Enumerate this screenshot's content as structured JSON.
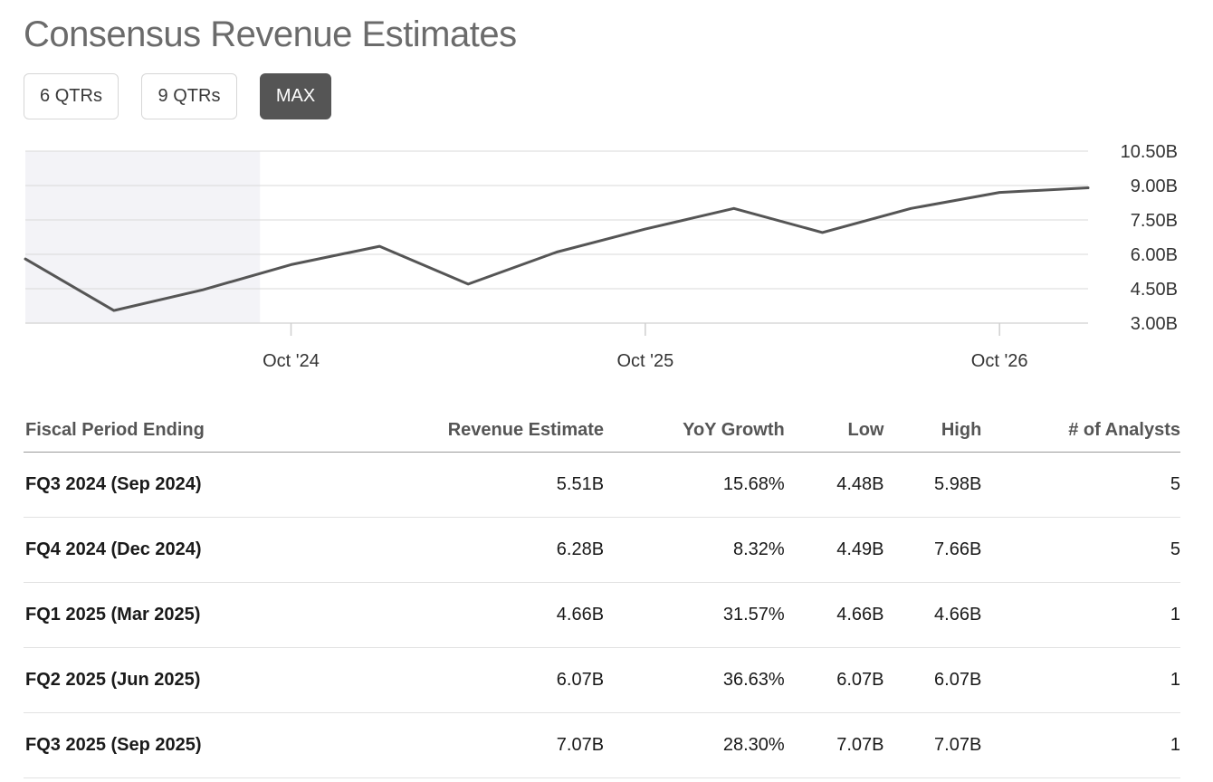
{
  "page": {
    "title": "Consensus Revenue Estimates"
  },
  "range_buttons": [
    {
      "label": "6 QTRs",
      "active": false
    },
    {
      "label": "9 QTRs",
      "active": false
    },
    {
      "label": "MAX",
      "active": true
    }
  ],
  "colors": {
    "line": "#555555",
    "shade": "#f3f3f7",
    "grid": "#d9d9d9",
    "active_button": "#555555"
  },
  "chart_data": {
    "type": "line",
    "title": "",
    "xlabel": "",
    "ylabel": "",
    "ylim": [
      3.0,
      10.5
    ],
    "yticks": [
      10.5,
      9.0,
      7.5,
      6.0,
      4.5,
      3.0
    ],
    "ytick_labels": [
      "10.50B",
      "9.00B",
      "7.50B",
      "6.00B",
      "4.50B",
      "3.00B"
    ],
    "xticks": [
      {
        "label": "Oct '24",
        "quarter_index": 3
      },
      {
        "label": "Oct '25",
        "quarter_index": 7
      },
      {
        "label": "Oct '26",
        "quarter_index": 11
      }
    ],
    "historical_until_index": 2.65,
    "series": [
      {
        "name": "Revenue Estimate",
        "values": [
          5.8,
          3.55,
          4.45,
          5.55,
          6.35,
          4.7,
          6.1,
          7.1,
          8.0,
          6.95,
          8.0,
          8.7,
          8.9
        ]
      }
    ]
  },
  "table": {
    "headers": [
      "Fiscal Period Ending",
      "Revenue Estimate",
      "YoY Growth",
      "Low",
      "High",
      "# of Analysts"
    ],
    "rows": [
      [
        "FQ3 2024 (Sep 2024)",
        "5.51B",
        "15.68%",
        "4.48B",
        "5.98B",
        "5"
      ],
      [
        "FQ4 2024 (Dec 2024)",
        "6.28B",
        "8.32%",
        "4.49B",
        "7.66B",
        "5"
      ],
      [
        "FQ1 2025 (Mar 2025)",
        "4.66B",
        "31.57%",
        "4.66B",
        "4.66B",
        "1"
      ],
      [
        "FQ2 2025 (Jun 2025)",
        "6.07B",
        "36.63%",
        "6.07B",
        "6.07B",
        "1"
      ],
      [
        "FQ3 2025 (Sep 2025)",
        "7.07B",
        "28.30%",
        "7.07B",
        "7.07B",
        "1"
      ]
    ]
  }
}
